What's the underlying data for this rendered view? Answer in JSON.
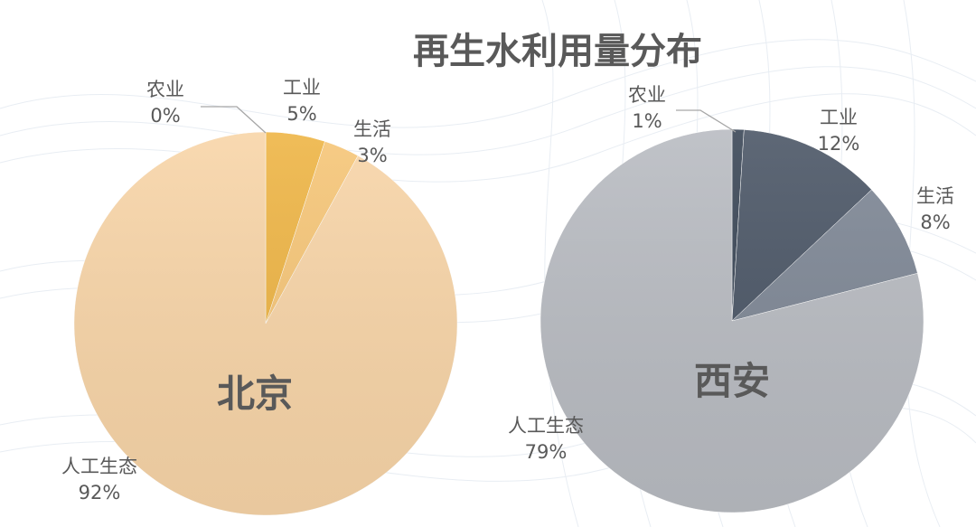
{
  "title": "再生水利用量分布",
  "chart_data": [
    {
      "type": "pie",
      "center_label": "北京",
      "slices": [
        {
          "name": "农业",
          "value": 0,
          "label": "0%",
          "color": "#f2a516"
        },
        {
          "name": "工业",
          "value": 5,
          "label": "5%",
          "color": "#eeb546"
        },
        {
          "name": "生活",
          "value": 3,
          "label": "3%",
          "color": "#f6c678"
        },
        {
          "name": "人工生态",
          "value": 92,
          "label": "92%",
          "color": "#f8d5a8"
        }
      ]
    },
    {
      "type": "pie",
      "center_label": "西安",
      "slices": [
        {
          "name": "农业",
          "value": 1,
          "label": "1%",
          "color": "#3b4757"
        },
        {
          "name": "工业",
          "value": 12,
          "label": "12%",
          "color": "#4c5767"
        },
        {
          "name": "生活",
          "value": 8,
          "label": "8%",
          "color": "#7f8896"
        },
        {
          "name": "人工生态",
          "value": 79,
          "label": "79%",
          "color": "#b9bcc2"
        }
      ]
    }
  ]
}
